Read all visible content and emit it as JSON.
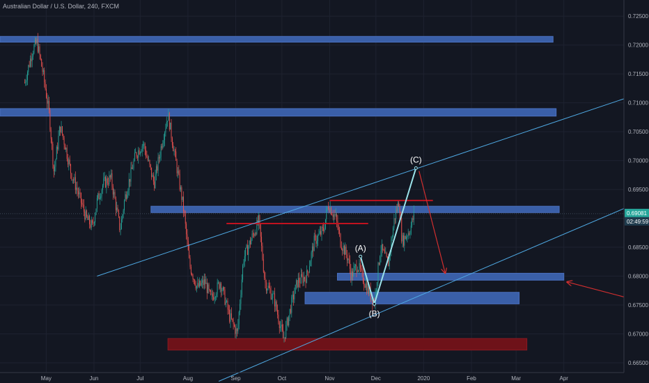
{
  "chart_data": {
    "type": "candlestick",
    "title": "Australian Dollar / U.S. Dollar, 240, FXCM",
    "xlabel": "",
    "ylabel": "",
    "ylim": [
      0.6615,
      0.7278
    ],
    "grid": true,
    "y_ticks": [
      "0.72500",
      "0.72000",
      "0.71500",
      "0.71000",
      "0.70500",
      "0.70000",
      "0.69500",
      "0.69000",
      "0.68500",
      "0.68000",
      "0.67500",
      "0.67000",
      "0.66500"
    ],
    "x_ticks": [
      "May",
      "Jun",
      "Jul",
      "Aug",
      "Sep",
      "Oct",
      "Nov",
      "Dec",
      "2020",
      "Feb",
      "Mar",
      "Apr"
    ],
    "last_price": "0.69081",
    "countdown": "02:49:59",
    "wave_labels": [
      "(A)",
      "(B)",
      "(C)"
    ],
    "price_path": [
      [
        "2019-04-17",
        0.7135
      ],
      [
        "2019-04-22",
        0.719
      ],
      [
        "2019-04-25",
        0.7205
      ],
      [
        "2019-04-29",
        0.715
      ],
      [
        "2019-05-03",
        0.708
      ],
      [
        "2019-05-06",
        0.698
      ],
      [
        "2019-05-10",
        0.706
      ],
      [
        "2019-05-13",
        0.703
      ],
      [
        "2019-05-17",
        0.698
      ],
      [
        "2019-05-21",
        0.695
      ],
      [
        "2019-05-27",
        0.69
      ],
      [
        "2019-05-31",
        0.6885
      ],
      [
        "2019-06-03",
        0.693
      ],
      [
        "2019-06-07",
        0.696
      ],
      [
        "2019-06-12",
        0.697
      ],
      [
        "2019-06-18",
        0.688
      ],
      [
        "2019-06-21",
        0.6935
      ],
      [
        "2019-06-28",
        0.701
      ],
      [
        "2019-07-03",
        0.703
      ],
      [
        "2019-07-10",
        0.696
      ],
      [
        "2019-07-15",
        0.703
      ],
      [
        "2019-07-19",
        0.708
      ],
      [
        "2019-07-24",
        0.7
      ],
      [
        "2019-07-29",
        0.692
      ],
      [
        "2019-08-02",
        0.682
      ],
      [
        "2019-08-07",
        0.678
      ],
      [
        "2019-08-12",
        0.679
      ],
      [
        "2019-08-16",
        0.676
      ],
      [
        "2019-08-22",
        0.679
      ],
      [
        "2019-08-28",
        0.673
      ],
      [
        "2019-09-02",
        0.67
      ],
      [
        "2019-09-06",
        0.683
      ],
      [
        "2019-09-12",
        0.687
      ],
      [
        "2019-09-16",
        0.6895
      ],
      [
        "2019-09-20",
        0.679
      ],
      [
        "2019-09-26",
        0.676
      ],
      [
        "2019-10-02",
        0.669
      ],
      [
        "2019-10-07",
        0.675
      ],
      [
        "2019-10-11",
        0.679
      ],
      [
        "2019-10-17",
        0.68
      ],
      [
        "2019-10-22",
        0.686
      ],
      [
        "2019-10-28",
        0.688
      ],
      [
        "2019-10-31",
        0.6925
      ],
      [
        "2019-11-05",
        0.69
      ],
      [
        "2019-11-08",
        0.686
      ],
      [
        "2019-11-13",
        0.683
      ],
      [
        "2019-11-15",
        0.68
      ],
      [
        "2019-11-19",
        0.682
      ],
      [
        "2019-11-22",
        0.68
      ],
      [
        "2019-11-27",
        0.677
      ],
      [
        "2019-11-30",
        0.6755
      ],
      [
        "2019-12-04",
        0.685
      ],
      [
        "2019-12-09",
        0.682
      ],
      [
        "2019-12-13",
        0.69
      ],
      [
        "2019-12-16",
        0.693
      ],
      [
        "2019-12-18",
        0.686
      ],
      [
        "2019-12-23",
        0.688
      ],
      [
        "2019-12-26",
        0.6908
      ]
    ],
    "zones": [
      {
        "color": "#3a5fa8",
        "from": "2019-04-01",
        "to": "2020-03-25",
        "low": 0.7205,
        "high": 0.7215
      },
      {
        "color": "#3a5fa8",
        "from": "2019-04-01",
        "to": "2020-03-27",
        "low": 0.7077,
        "high": 0.709
      },
      {
        "color": "#3a5fa8",
        "from": "2019-07-08",
        "to": "2020-03-29",
        "low": 0.691,
        "high": 0.6921
      },
      {
        "color": "#3a5fa8",
        "from": "2019-11-06",
        "to": "2020-04-01",
        "low": 0.6793,
        "high": 0.6805
      },
      {
        "color": "#3a5fa8",
        "from": "2019-10-16",
        "to": "2020-03-03",
        "low": 0.6752,
        "high": 0.6772
      },
      {
        "color": "#6e1219",
        "from": "2019-07-19",
        "to": "2020-03-08",
        "low": 0.6672,
        "high": 0.6692
      }
    ],
    "resistance_lines": [
      {
        "from": "2019-11-01",
        "to": "2020-01-07",
        "value": 0.6931
      },
      {
        "from": "2019-08-26",
        "to": "2019-11-26",
        "value": 0.6891
      }
    ],
    "trend_lines": [
      {
        "from": [
          "2019-06-03",
          0.68
        ],
        "to": [
          "2020-05-10",
          0.7107
        ]
      },
      {
        "from": [
          "2019-08-21",
          0.6618
        ],
        "to": [
          "2020-05-10",
          0.6917
        ]
      }
    ],
    "wave_path": [
      [
        "2019-11-21",
        0.6834
      ],
      [
        "2019-11-30",
        0.6752
      ],
      [
        "2019-12-27",
        0.6987
      ]
    ],
    "forecast_arrows": [
      {
        "from": [
          "2019-12-29",
          0.6982
        ],
        "to": [
          "2020-01-15",
          0.6805
        ]
      },
      {
        "from": [
          "2020-05-10",
          0.6764
        ],
        "to": [
          "2020-04-03",
          0.679
        ]
      }
    ],
    "colors": {
      "up": "#26a69a",
      "down": "#ef5350",
      "channel": "#4fa9e3",
      "wave": "#9be3ea",
      "resistance": "#c1121f",
      "arrow": "#d32f2f",
      "price_tag": "#26a69a",
      "timer_tag": "#1f3b4d"
    }
  }
}
